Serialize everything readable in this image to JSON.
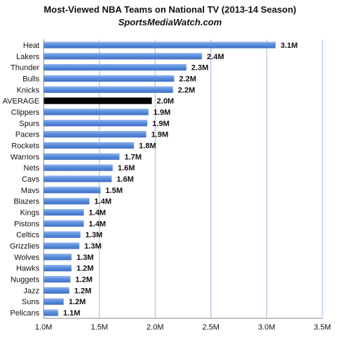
{
  "chart_data": {
    "type": "bar",
    "orientation": "horizontal",
    "title": "Most-Viewed NBA Teams on National TV (2013-14 Season)",
    "subtitle": "SportsMediaWatch.com",
    "categories": [
      "Heat",
      "Lakers",
      "Thunder",
      "Bulls",
      "Knicks",
      "AVERAGE",
      "Clippers",
      "Spurs",
      "Pacers",
      "Rockets",
      "Warriors",
      "Nets",
      "Cavs",
      "Mavs",
      "Blazers",
      "Kings",
      "Pistons",
      "Celtics",
      "Grizzlies",
      "Wolves",
      "Hawks",
      "Nuggets",
      "Jazz",
      "Suns",
      "Pelicans"
    ],
    "values": [
      3.1,
      2.4,
      2.3,
      2.2,
      2.2,
      2.0,
      1.9,
      1.9,
      1.9,
      1.8,
      1.7,
      1.6,
      1.6,
      1.5,
      1.4,
      1.4,
      1.4,
      1.3,
      1.3,
      1.3,
      1.2,
      1.2,
      1.2,
      1.2,
      1.1
    ],
    "plotted_values": [
      3.08,
      2.42,
      2.28,
      2.17,
      2.16,
      1.97,
      1.94,
      1.93,
      1.92,
      1.81,
      1.68,
      1.62,
      1.61,
      1.51,
      1.41,
      1.36,
      1.36,
      1.33,
      1.32,
      1.25,
      1.25,
      1.24,
      1.23,
      1.18,
      1.13
    ],
    "value_labels": [
      "3.1M",
      "2.4M",
      "2.3M",
      "2.2M",
      "2.2M",
      "2.0M",
      "1.9M",
      "1.9M",
      "1.9M",
      "1.8M",
      "1.7M",
      "1.6M",
      "1.6M",
      "1.5M",
      "1.4M",
      "1.4M",
      "1.4M",
      "1.3M",
      "1.3M",
      "1.3M",
      "1.2M",
      "1.2M",
      "1.2M",
      "1.2M",
      "1.1M"
    ],
    "highlight_category": "AVERAGE",
    "x_ticks": [
      1.0,
      1.5,
      2.0,
      2.5,
      3.0,
      3.5
    ],
    "x_tick_labels": [
      "1.0M",
      "1.5M",
      "2.0M",
      "2.5M",
      "3.0M",
      "3.5M"
    ],
    "xlim": [
      1.0,
      3.5
    ],
    "grid": "vertical",
    "colors": {
      "bar": "#5b8ede",
      "bar_highlight": "#000000",
      "grid": "#9db8de",
      "axis": "#8a8a8a"
    }
  }
}
